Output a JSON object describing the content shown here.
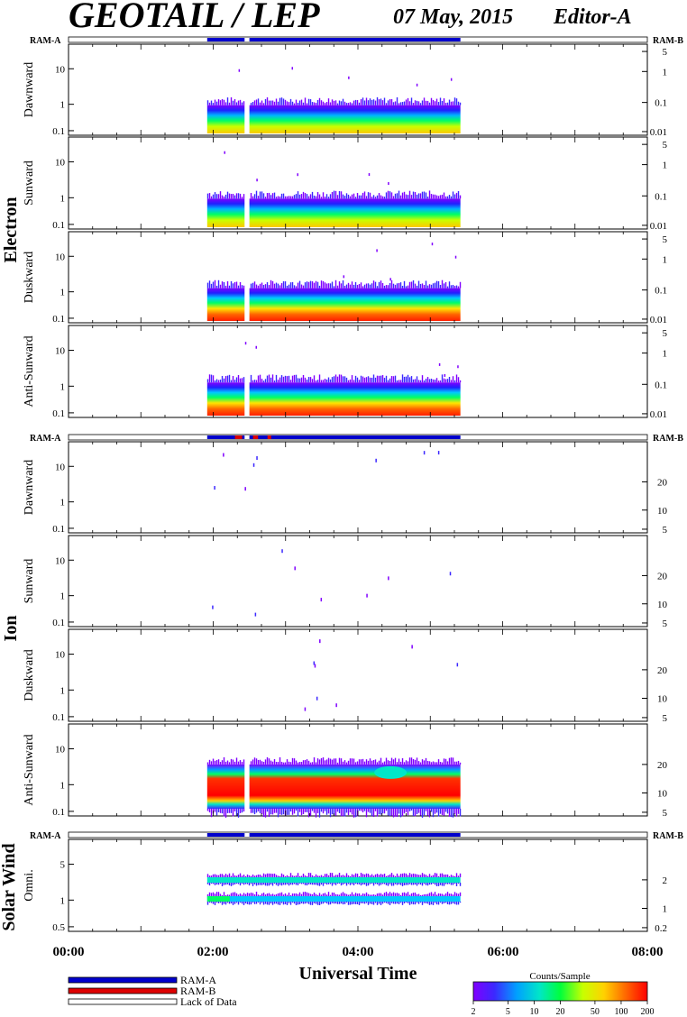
{
  "header": {
    "title": "GEOTAIL / LEP",
    "date": "07 May, 2015",
    "editor": "Editor-A"
  },
  "ram_labels": {
    "a": "RAM-A",
    "b": "RAM-B"
  },
  "x_axis": {
    "title": "Universal Time",
    "ticks": [
      "00:00",
      "02:00",
      "04:00",
      "06:00",
      "08:00"
    ],
    "range_hours": [
      0,
      8
    ]
  },
  "legend": {
    "ram_a": "RAM-A",
    "ram_b": "RAM-B",
    "lack": "Lack of Data",
    "colors": {
      "ram_a": "#0000cc",
      "ram_b": "#dd0000"
    }
  },
  "colorbar": {
    "title": "Counts/Sample",
    "ticks": [
      "2",
      "5",
      "10",
      "20",
      "50",
      "100",
      "200"
    ],
    "colors": [
      "#8000ff",
      "#3c28ff",
      "#00a0ff",
      "#00e6c8",
      "#00ff3c",
      "#c8ff00",
      "#ffd200",
      "#ff6400",
      "#ff0000"
    ]
  },
  "groups": [
    {
      "id": "electron",
      "label": "Electron",
      "panels": [
        {
          "label": "Dawnward",
          "left_ticks": [
            "10",
            "1",
            "0.1"
          ],
          "right_ticks": [
            "5",
            "1",
            "0.1",
            "0.01"
          ]
        },
        {
          "label": "Sunward",
          "left_ticks": [
            "10",
            "1",
            "0.1"
          ],
          "right_ticks": [
            "5",
            "1",
            "0.1",
            "0.01"
          ]
        },
        {
          "label": "Duskward",
          "left_ticks": [
            "10",
            "1",
            "0.1"
          ],
          "right_ticks": [
            "5",
            "1",
            "0.1",
            "0.01"
          ]
        },
        {
          "label": "Anti-Sunward",
          "left_ticks": [
            "10",
            "1",
            "0.1"
          ],
          "right_ticks": [
            "5",
            "1",
            "0.1",
            "0.01"
          ]
        }
      ]
    },
    {
      "id": "ion",
      "label": "Ion",
      "panels": [
        {
          "label": "Dawnward",
          "left_ticks": [
            "10",
            "1",
            "0.1"
          ],
          "right_ticks": [
            "20",
            "10",
            "5"
          ]
        },
        {
          "label": "Sunward",
          "left_ticks": [
            "10",
            "1",
            "0.1"
          ],
          "right_ticks": [
            "20",
            "10",
            "5"
          ]
        },
        {
          "label": "Duskward",
          "left_ticks": [
            "10",
            "1",
            "0.1"
          ],
          "right_ticks": [
            "20",
            "10",
            "5"
          ]
        },
        {
          "label": "Anti-Sunward",
          "left_ticks": [
            "10",
            "1",
            "0.1"
          ],
          "right_ticks": [
            "20",
            "10",
            "5"
          ]
        }
      ]
    },
    {
      "id": "solar-wind",
      "label": "Solar Wind",
      "panels": [
        {
          "label": "Omni.",
          "left_ticks": [
            "5",
            "1",
            "0.5"
          ],
          "right_ticks": [
            "2",
            "1",
            "0.2"
          ]
        }
      ]
    }
  ],
  "chart_data": {
    "type": "heatmap",
    "title": "GEOTAIL / LEP",
    "xlabel": "Universal Time",
    "xlim": [
      "00:00",
      "08:00"
    ],
    "data_coverage": {
      "start": "01:55",
      "gap": [
        "02:26",
        "02:30"
      ],
      "end": "05:25",
      "status_bar": "RAM-A"
    },
    "zlabel": "Counts/Sample",
    "zlim": [
      2,
      200
    ]
  }
}
